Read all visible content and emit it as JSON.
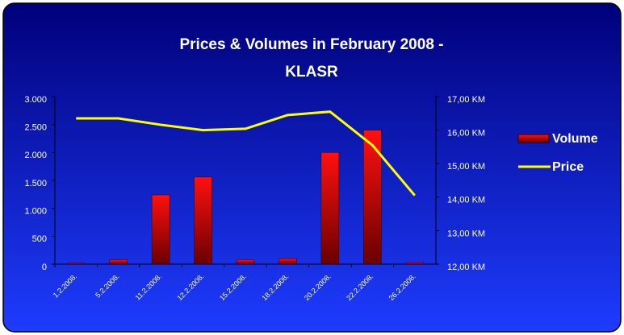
{
  "chart_data": {
    "type": "bar_line",
    "title": [
      "Prices & Volumes in February 2008 -",
      "KLASR"
    ],
    "categories": [
      "1.2.2008.",
      "5.2.2008.",
      "11.2.2008.",
      "12.2.2008.",
      "15.2.2008.",
      "18.2.2008.",
      "20.2.2008.",
      "22.2.2008.",
      "26.2.2008."
    ],
    "series": [
      {
        "name": "Volume",
        "color": "#cc0000",
        "type": "bar",
        "values": [
          20,
          80,
          1240,
          1560,
          80,
          100,
          2000,
          2400,
          30
        ]
      },
      {
        "name": "Price",
        "color": "#ffff00",
        "type": "line",
        "axis": "y2",
        "values": [
          16.35,
          16.35,
          16.16,
          16.0,
          16.04,
          16.45,
          16.55,
          15.55,
          14.05
        ]
      }
    ],
    "ylim": [
      0,
      3000
    ],
    "yticks": [
      0,
      500,
      {
        "value": 1000,
        "label": "1.000"
      },
      {
        "value": 1500,
        "label": "1.500"
      },
      {
        "value": 2000,
        "label": "2.000"
      },
      {
        "value": 2500,
        "label": "2.500"
      },
      {
        "value": 3000,
        "label": "3.000"
      }
    ],
    "y2lim": [
      12,
      17
    ],
    "y2ticks": [
      {
        "value": 12,
        "label": "12,00 KM"
      },
      {
        "value": 13,
        "label": "13,00 KM"
      },
      {
        "value": 14,
        "label": "14,00 KM"
      },
      {
        "value": 15,
        "label": "15,00 KM"
      },
      {
        "value": 16,
        "label": "16,00 KM"
      },
      {
        "value": 17,
        "label": "17,00 KM"
      }
    ],
    "legend": "right"
  }
}
